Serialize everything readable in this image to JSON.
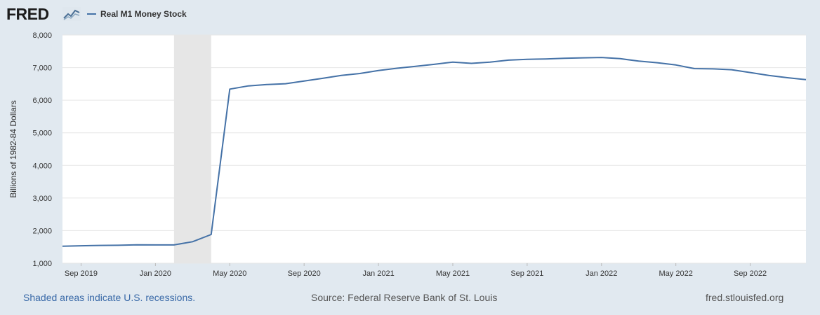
{
  "header": {
    "logo_text": "FRED",
    "logo_icon": "trend-line-icon"
  },
  "colors": {
    "series": "#4572a7",
    "recession_shade": "#e6e6e6",
    "grid": "#e6e6e6",
    "plot_bg": "#ffffff",
    "page_bg": "#e1e9f0"
  },
  "footer": {
    "note": "Shaded areas indicate U.S. recessions.",
    "source": "Source: Federal Reserve Bank of St. Louis",
    "site": "fred.stlouisfed.org"
  },
  "chart_data": {
    "type": "line",
    "title": "",
    "ylabel": "Billions of 1982-84 Dollars",
    "xlabel": "",
    "ylim": [
      1000,
      8000
    ],
    "yticks": [
      1000,
      2000,
      3000,
      4000,
      5000,
      6000,
      7000,
      8000
    ],
    "ytick_labels": [
      "1,000",
      "2,000",
      "3,000",
      "4,000",
      "5,000",
      "6,000",
      "7,000",
      "8,000"
    ],
    "x_start": "2019-08",
    "x_end": "2022-12",
    "xticks": [
      {
        "month": 1,
        "label": "Sep 2019"
      },
      {
        "month": 5,
        "label": "Jan 2020"
      },
      {
        "month": 9,
        "label": "May 2020"
      },
      {
        "month": 13,
        "label": "Sep 2020"
      },
      {
        "month": 17,
        "label": "Jan 2021"
      },
      {
        "month": 21,
        "label": "May 2021"
      },
      {
        "month": 25,
        "label": "Sep 2021"
      },
      {
        "month": 29,
        "label": "Jan 2022"
      },
      {
        "month": 33,
        "label": "May 2022"
      },
      {
        "month": 37,
        "label": "Sep 2022"
      }
    ],
    "recessions": [
      {
        "start_month": 6,
        "end_month": 8,
        "label": "Feb 2020 - Apr 2020"
      }
    ],
    "series": [
      {
        "name": "Real M1 Money Stock",
        "x_months": [
          0,
          1,
          2,
          3,
          4,
          5,
          6,
          7,
          8,
          9,
          10,
          11,
          12,
          13,
          14,
          15,
          16,
          17,
          18,
          19,
          20,
          21,
          22,
          23,
          24,
          25,
          26,
          27,
          28,
          29,
          30,
          31,
          32,
          33,
          34,
          35,
          36,
          37,
          38,
          39,
          40
        ],
        "values": [
          1520,
          1535,
          1545,
          1550,
          1565,
          1560,
          1560,
          1660,
          1880,
          6340,
          6440,
          6480,
          6505,
          6590,
          6670,
          6760,
          6820,
          6910,
          6980,
          7040,
          7100,
          7170,
          7130,
          7170,
          7230,
          7255,
          7265,
          7285,
          7300,
          7310,
          7275,
          7200,
          7150,
          7080,
          6970,
          6960,
          6935,
          6850,
          6760,
          6690,
          6630
        ]
      }
    ]
  }
}
